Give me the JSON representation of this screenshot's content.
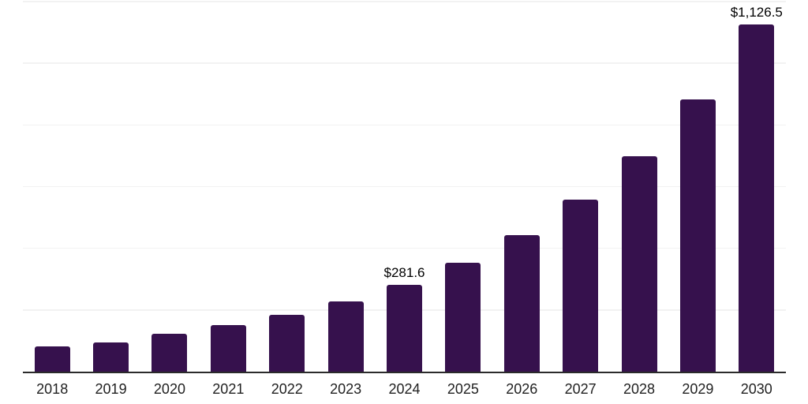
{
  "chart_data": {
    "type": "bar",
    "title": "",
    "xlabel": "",
    "ylabel": "",
    "categories": [
      "2018",
      "2019",
      "2020",
      "2021",
      "2022",
      "2023",
      "2024",
      "2025",
      "2026",
      "2027",
      "2028",
      "2029",
      "2030"
    ],
    "values": [
      81,
      95,
      124,
      152,
      184,
      227,
      281.6,
      353,
      442,
      557,
      698,
      882,
      1126.5
    ],
    "ylim": [
      0,
      1200
    ],
    "gridline_interval": 200,
    "grid": "horizontal",
    "legend": "none",
    "annotations": [
      {
        "category": "2024",
        "text": "$281.6"
      },
      {
        "category": "2030",
        "text": "$1,126.5"
      }
    ]
  },
  "colors": {
    "bar": "#36114D",
    "gridline": "#F2F2F2",
    "axis_line": "#2B2B2B",
    "tick_label": "#212121",
    "data_label": "#000000",
    "background": "#FFFFFF"
  }
}
